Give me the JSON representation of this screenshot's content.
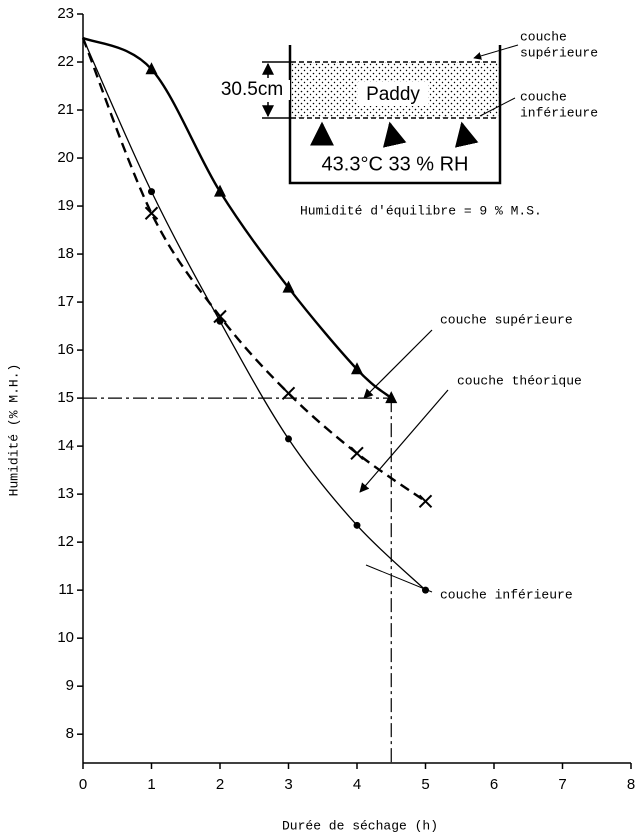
{
  "chart_data": {
    "type": "line",
    "x_label": "Durée de séchage (h)",
    "y_label": "Humidité (% M.H.)",
    "x": [
      0,
      1,
      2,
      3,
      4,
      4.5,
      5
    ],
    "series": [
      {
        "name": "couche supérieure",
        "color": "#000000",
        "marker": "triangle",
        "values": [
          22.5,
          21.85,
          19.3,
          17.3,
          15.6,
          15.0,
          null
        ]
      },
      {
        "name": "couche théorique",
        "color": "#000000",
        "marker": "cross",
        "dashed": true,
        "values": [
          22.5,
          18.85,
          16.7,
          15.1,
          13.85,
          null,
          12.85
        ]
      },
      {
        "name": "couche inférieure",
        "color": "#000000",
        "marker": "dot",
        "values": [
          22.5,
          19.3,
          16.6,
          14.15,
          12.35,
          null,
          11.0
        ]
      }
    ],
    "xlim": [
      0,
      8
    ],
    "xticks": [
      0,
      1,
      2,
      3,
      4,
      5,
      6,
      7,
      8
    ],
    "ylim": [
      7.4,
      23
    ],
    "yticks": [
      8,
      9,
      10,
      11,
      12,
      13,
      14,
      15,
      16,
      17,
      18,
      19,
      20,
      21,
      22,
      23
    ],
    "reference": {
      "x": 4.5,
      "y": 15
    },
    "annotation": "Humidité d'équilibre = 9 % M.S.",
    "inset": {
      "height": "30.5cm",
      "material": "Paddy",
      "air": "43.3°C 33 % RH",
      "top_label": [
        "couche",
        "supérieure"
      ],
      "bottom_label": [
        "couche",
        "inférieure"
      ]
    }
  }
}
